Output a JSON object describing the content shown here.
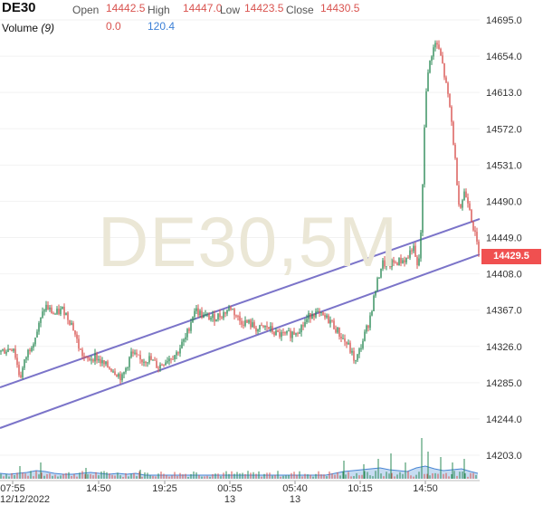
{
  "header": {
    "symbol": "DE30",
    "open_label": "Open",
    "open_value": "14442.5",
    "high_label": "High",
    "high_value": "14447.0",
    "low_label": "Low",
    "low_value": "14423.5",
    "close_label": "Close",
    "close_value": "14430.5",
    "volume_label": "Volume",
    "volume_period": "(9)",
    "volume_value": "0.0",
    "volume_ma_value": "120.4"
  },
  "watermark": "DE30,5M",
  "last_price_tag": "14429.5",
  "colors": {
    "up": "#2e8b57",
    "down": "#d9534f",
    "channel": "#7b74c9",
    "volume_fill": "#b9d3ef",
    "volume_line": "#4a86d4",
    "price_tag": "#f05050"
  },
  "chart_data": {
    "type": "candlestick",
    "interval": "5M",
    "y_ticks": [
      "14695.0",
      "14654.0",
      "14613.0",
      "14572.0",
      "14531.0",
      "14490.0",
      "14449.0",
      "14408.0",
      "14367.0",
      "14326.0",
      "14285.0",
      "14244.0",
      "14203.0"
    ],
    "ylim": [
      14180,
      14710
    ],
    "x_ticks": [
      {
        "label": "07:55",
        "sub": "12/12/2022"
      },
      {
        "label": "14:50",
        "sub": ""
      },
      {
        "label": "19:25",
        "sub": ""
      },
      {
        "label": "00:55",
        "sub": "13"
      },
      {
        "label": "05:40",
        "sub": "13"
      },
      {
        "label": "10:15",
        "sub": ""
      },
      {
        "label": "14:50",
        "sub": ""
      }
    ],
    "price_path": [
      [
        0,
        14320
      ],
      [
        15,
        14325
      ],
      [
        22,
        14290
      ],
      [
        30,
        14318
      ],
      [
        40,
        14340
      ],
      [
        50,
        14372
      ],
      [
        60,
        14362
      ],
      [
        70,
        14368
      ],
      [
        80,
        14350
      ],
      [
        88,
        14322
      ],
      [
        95,
        14310
      ],
      [
        105,
        14315
      ],
      [
        115,
        14305
      ],
      [
        125,
        14300
      ],
      [
        135,
        14290
      ],
      [
        145,
        14318
      ],
      [
        155,
        14310
      ],
      [
        165,
        14312
      ],
      [
        175,
        14303
      ],
      [
        185,
        14312
      ],
      [
        195,
        14318
      ],
      [
        205,
        14335
      ],
      [
        215,
        14368
      ],
      [
        225,
        14360
      ],
      [
        235,
        14358
      ],
      [
        245,
        14362
      ],
      [
        255,
        14370
      ],
      [
        265,
        14355
      ],
      [
        275,
        14352
      ],
      [
        285,
        14345
      ],
      [
        295,
        14348
      ],
      [
        305,
        14340
      ],
      [
        315,
        14338
      ],
      [
        325,
        14342
      ],
      [
        335,
        14350
      ],
      [
        345,
        14365
      ],
      [
        355,
        14360
      ],
      [
        365,
        14355
      ],
      [
        375,
        14340
      ],
      [
        385,
        14326
      ],
      [
        393,
        14308
      ],
      [
        400,
        14330
      ],
      [
        408,
        14355
      ],
      [
        415,
        14390
      ],
      [
        422,
        14420
      ],
      [
        430,
        14418
      ],
      [
        440,
        14422
      ],
      [
        450,
        14425
      ],
      [
        456,
        14440
      ],
      [
        462,
        14410
      ],
      [
        466,
        14470
      ],
      [
        470,
        14610
      ],
      [
        476,
        14655
      ],
      [
        482,
        14670
      ],
      [
        488,
        14650
      ],
      [
        493,
        14620
      ],
      [
        498,
        14590
      ],
      [
        503,
        14535
      ],
      [
        508,
        14480
      ],
      [
        513,
        14500
      ],
      [
        518,
        14490
      ],
      [
        522,
        14465
      ],
      [
        527,
        14442
      ],
      [
        531,
        14430
      ]
    ],
    "channel_upper": [
      [
        14440,
        14290
      ],
      [
        14500,
        14450
      ]
    ],
    "channel_lower": [
      [
        14440,
        14240
      ],
      [
        14500,
        14408
      ]
    ],
    "last_price": 14429.5,
    "volume_ma": [
      [
        0,
        6
      ],
      [
        10,
        5
      ],
      [
        20,
        6
      ],
      [
        30,
        7
      ],
      [
        40,
        9
      ],
      [
        50,
        8
      ],
      [
        60,
        6
      ],
      [
        70,
        5
      ],
      [
        80,
        5
      ],
      [
        90,
        6
      ],
      [
        100,
        7
      ],
      [
        110,
        6
      ],
      [
        120,
        5
      ],
      [
        130,
        6
      ],
      [
        140,
        5
      ],
      [
        150,
        6
      ],
      [
        160,
        4
      ],
      [
        170,
        4
      ],
      [
        180,
        4
      ],
      [
        190,
        4
      ],
      [
        200,
        4
      ],
      [
        210,
        4
      ],
      [
        220,
        4
      ],
      [
        230,
        4
      ],
      [
        240,
        4
      ],
      [
        250,
        4
      ],
      [
        260,
        4
      ],
      [
        270,
        4
      ],
      [
        280,
        4
      ],
      [
        290,
        4
      ],
      [
        300,
        4
      ],
      [
        310,
        4
      ],
      [
        320,
        4
      ],
      [
        330,
        4
      ],
      [
        340,
        4
      ],
      [
        350,
        4
      ],
      [
        360,
        4
      ],
      [
        370,
        6
      ],
      [
        380,
        8
      ],
      [
        390,
        9
      ],
      [
        400,
        10
      ],
      [
        410,
        11
      ],
      [
        420,
        12
      ],
      [
        430,
        10
      ],
      [
        440,
        9
      ],
      [
        450,
        8
      ],
      [
        460,
        12
      ],
      [
        470,
        14
      ],
      [
        480,
        11
      ],
      [
        490,
        9
      ],
      [
        500,
        10
      ],
      [
        510,
        11
      ],
      [
        520,
        8
      ],
      [
        528,
        6
      ]
    ],
    "volume_spikes": [
      [
        22,
        14
      ],
      [
        45,
        18
      ],
      [
        95,
        12
      ],
      [
        155,
        10
      ],
      [
        214,
        8
      ],
      [
        380,
        20
      ],
      [
        402,
        16
      ],
      [
        418,
        22
      ],
      [
        432,
        28
      ],
      [
        448,
        18
      ],
      [
        466,
        45
      ],
      [
        473,
        30
      ],
      [
        487,
        24
      ],
      [
        500,
        18
      ],
      [
        513,
        22
      ]
    ]
  }
}
